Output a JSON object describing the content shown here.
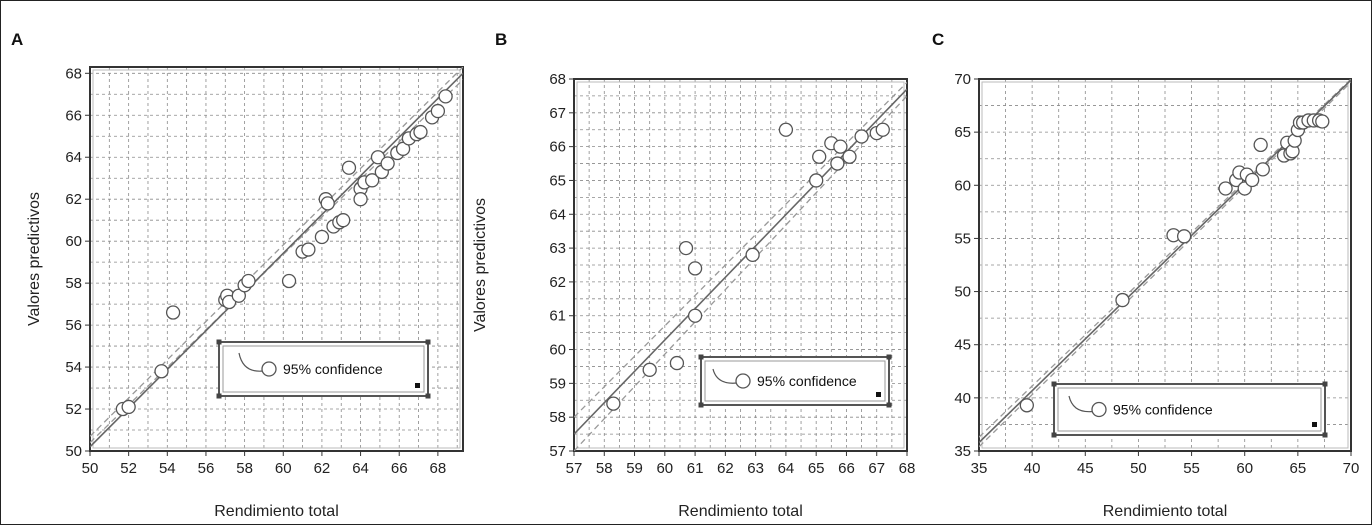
{
  "figure_background": "#ffffff",
  "colors": {
    "axis": "#333333",
    "grid": "#8a8a8a",
    "points": "#555555",
    "fit_line": "#666666",
    "ci_line": "#999999",
    "legend_frame": "#555555"
  },
  "chart_data": [
    {
      "panel": "A",
      "type": "scatter",
      "xlabel": "Rendimiento total",
      "ylabel": "Valores predictivos",
      "xlim": [
        50,
        69.3
      ],
      "ylim": [
        50,
        68.3
      ],
      "xticks": [
        50,
        52,
        54,
        56,
        58,
        60,
        62,
        64,
        66,
        68
      ],
      "yticks": [
        50,
        52,
        54,
        56,
        58,
        60,
        62,
        64,
        66,
        68
      ],
      "grid": true,
      "legend": {
        "label": "95% confidence",
        "placement": "bottom-right"
      },
      "points": [
        [
          51.7,
          52.0
        ],
        [
          52.0,
          52.1
        ],
        [
          53.7,
          53.8
        ],
        [
          54.3,
          56.6
        ],
        [
          57.0,
          57.2
        ],
        [
          57.1,
          57.4
        ],
        [
          57.2,
          57.1
        ],
        [
          57.7,
          57.4
        ],
        [
          58.0,
          57.9
        ],
        [
          58.2,
          58.1
        ],
        [
          60.3,
          58.1
        ],
        [
          61.0,
          59.5
        ],
        [
          61.3,
          59.6
        ],
        [
          62.0,
          60.2
        ],
        [
          62.2,
          62.0
        ],
        [
          62.3,
          61.8
        ],
        [
          62.6,
          60.7
        ],
        [
          62.9,
          60.9
        ],
        [
          63.1,
          61.0
        ],
        [
          63.4,
          63.5
        ],
        [
          64.0,
          62.5
        ],
        [
          64.0,
          62.0
        ],
        [
          64.2,
          62.8
        ],
        [
          64.6,
          62.9
        ],
        [
          64.9,
          64.0
        ],
        [
          65.1,
          63.3
        ],
        [
          65.4,
          63.7
        ],
        [
          65.9,
          64.2
        ],
        [
          66.2,
          64.4
        ],
        [
          66.5,
          64.9
        ],
        [
          66.9,
          65.1
        ],
        [
          67.1,
          65.2
        ],
        [
          67.7,
          65.9
        ],
        [
          68.0,
          66.2
        ],
        [
          68.4,
          66.9
        ]
      ],
      "fit_line": [
        [
          50,
          50.2
        ],
        [
          69.3,
          68.0
        ]
      ],
      "ci_band": {
        "lower": [
          [
            50,
            50.4
          ],
          [
            69.3,
            67.7
          ]
        ],
        "upper": [
          [
            50,
            50.7
          ],
          [
            69.3,
            68.3
          ]
        ]
      }
    },
    {
      "panel": "B",
      "type": "scatter",
      "xlabel": "Rendimiento total",
      "ylabel": "Valores predictivos",
      "xlim": [
        57,
        68
      ],
      "ylim": [
        57,
        68
      ],
      "xticks": [
        57,
        58,
        59,
        60,
        61,
        62,
        63,
        64,
        65,
        66,
        67,
        68
      ],
      "yticks": [
        57,
        58,
        59,
        60,
        61,
        62,
        63,
        64,
        65,
        66,
        67,
        68
      ],
      "grid": true,
      "legend": {
        "label": "95% confidence",
        "placement": "bottom-right"
      },
      "points": [
        [
          58.3,
          58.4
        ],
        [
          59.5,
          59.4
        ],
        [
          60.4,
          59.6
        ],
        [
          60.7,
          63.0
        ],
        [
          61.0,
          61.0
        ],
        [
          61.0,
          62.4
        ],
        [
          62.9,
          62.8
        ],
        [
          64.0,
          66.5
        ],
        [
          65.0,
          65.0
        ],
        [
          65.1,
          65.7
        ],
        [
          65.5,
          66.1
        ],
        [
          65.7,
          65.5
        ],
        [
          65.8,
          66.0
        ],
        [
          66.1,
          65.7
        ],
        [
          66.5,
          66.3
        ],
        [
          67.0,
          66.4
        ],
        [
          67.2,
          66.5
        ]
      ],
      "fit_line": [
        [
          57,
          57.5
        ],
        [
          68,
          67.7
        ]
      ],
      "ci_band": {
        "lower": [
          [
            57,
            57.0
          ],
          [
            68,
            67.5
          ]
        ],
        "upper": [
          [
            57,
            58.0
          ],
          [
            68,
            67.9
          ]
        ]
      }
    },
    {
      "panel": "C",
      "type": "scatter",
      "xlabel": "Rendimiento total",
      "ylabel": "",
      "xlim": [
        35,
        70
      ],
      "ylim": [
        35,
        70
      ],
      "xticks": [
        35,
        40,
        45,
        50,
        55,
        60,
        65,
        70
      ],
      "yticks": [
        35,
        40,
        45,
        50,
        55,
        60,
        65,
        70
      ],
      "grid": true,
      "legend": {
        "label": "95% confidence",
        "placement": "bottom-right"
      },
      "points": [
        [
          39.5,
          39.3
        ],
        [
          48.5,
          49.2
        ],
        [
          53.3,
          55.3
        ],
        [
          54.3,
          55.2
        ],
        [
          58.2,
          59.7
        ],
        [
          59.2,
          60.5
        ],
        [
          59.5,
          61.2
        ],
        [
          60.0,
          59.7
        ],
        [
          60.2,
          61.0
        ],
        [
          60.7,
          60.5
        ],
        [
          61.7,
          61.5
        ],
        [
          61.5,
          63.8
        ],
        [
          63.7,
          62.8
        ],
        [
          64.0,
          64.0
        ],
        [
          64.3,
          63.0
        ],
        [
          64.5,
          63.2
        ],
        [
          64.7,
          64.2
        ],
        [
          65.0,
          65.2
        ],
        [
          65.2,
          65.9
        ],
        [
          65.5,
          65.9
        ],
        [
          66.0,
          66.1
        ],
        [
          66.5,
          66.1
        ],
        [
          67.0,
          66.1
        ],
        [
          67.3,
          66.0
        ]
      ],
      "fit_line": [
        [
          35,
          35.8
        ],
        [
          70,
          69.9
        ]
      ],
      "ci_band": {
        "lower": [
          [
            35,
            35.4
          ],
          [
            70,
            69.7
          ]
        ],
        "upper": [
          [
            35,
            36.3
          ],
          [
            70,
            70.0
          ]
        ]
      }
    }
  ]
}
